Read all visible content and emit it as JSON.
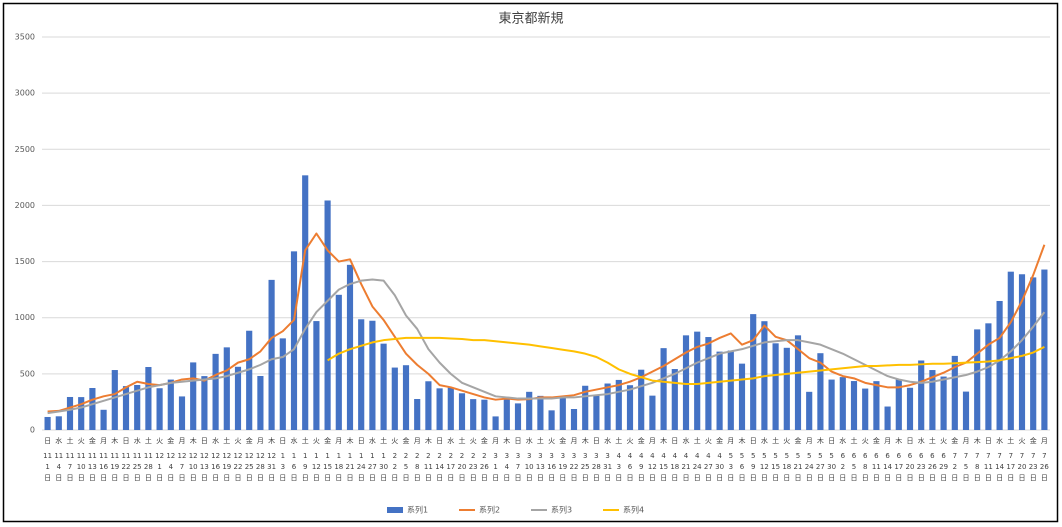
{
  "chart_data": {
    "type": "bar-line",
    "title": "東京都新規",
    "ylim": [
      0,
      3500
    ],
    "yticks": [
      0,
      500,
      1000,
      1500,
      2000,
      2500,
      3000,
      3500
    ],
    "grid": true,
    "legend": "bottom",
    "weekdays": [
      "日",
      "水",
      "土",
      "火",
      "金",
      "月",
      "木",
      "日",
      "水",
      "土",
      "火",
      "金",
      "月",
      "木",
      "日",
      "水",
      "土",
      "火",
      "金",
      "月",
      "木",
      "日",
      "水",
      "土",
      "火",
      "金",
      "月",
      "木",
      "日",
      "水",
      "土",
      "火",
      "金",
      "月",
      "木",
      "日",
      "水",
      "土",
      "火",
      "金",
      "月",
      "木",
      "日",
      "水",
      "土",
      "火",
      "金",
      "月",
      "木",
      "日",
      "水",
      "土",
      "火",
      "金",
      "月",
      "木",
      "日",
      "水",
      "土",
      "火",
      "金",
      "月",
      "木",
      "日",
      "水",
      "土",
      "火",
      "金",
      "月",
      "木",
      "日",
      "水",
      "土",
      "火",
      "金",
      "月",
      "木",
      "日",
      "水",
      "土",
      "火",
      "金",
      "月",
      "木",
      "日",
      "水",
      "土",
      "火",
      "金",
      "月"
    ],
    "categories": [
      "11\n1\n日",
      "11\n4\n日",
      "11\n7\n日",
      "11\n10\n日",
      "11\n13\n日",
      "11\n16\n日",
      "11\n19\n日",
      "11\n22\n日",
      "11\n25\n日",
      "11\n28\n日",
      "12\n1\n日",
      "12\n4\n日",
      "12\n7\n日",
      "12\n10\n日",
      "12\n13\n日",
      "12\n16\n日",
      "12\n19\n日",
      "12\n22\n日",
      "12\n25\n日",
      "12\n28\n日",
      "12\n31\n日",
      "1\n3\n日",
      "1\n6\n日",
      "1\n9\n日",
      "1\n12\n日",
      "1\n15\n日",
      "1\n18\n日",
      "1\n21\n日",
      "1\n24\n日",
      "1\n27\n日",
      "1\n30\n日",
      "2\n2\n日",
      "2\n5\n日",
      "2\n8\n日",
      "2\n11\n日",
      "2\n14\n日",
      "2\n17\n日",
      "2\n20\n日",
      "2\n23\n日",
      "2\n26\n日",
      "3\n1\n日",
      "3\n4\n日",
      "3\n7\n日",
      "3\n10\n日",
      "3\n13\n日",
      "3\n16\n日",
      "3\n19\n日",
      "3\n22\n日",
      "3\n25\n日",
      "3\n28\n日",
      "3\n31\n日",
      "4\n3\n日",
      "4\n6\n日",
      "4\n9\n日",
      "4\n12\n日",
      "4\n15\n日",
      "4\n18\n日",
      "4\n21\n日",
      "4\n24\n日",
      "4\n27\n日",
      "4\n30\n日",
      "5\n3\n日",
      "5\n6\n日",
      "5\n9\n日",
      "5\n12\n日",
      "5\n15\n日",
      "5\n18\n日",
      "5\n21\n日",
      "5\n24\n日",
      "5\n27\n日",
      "5\n30\n日",
      "6\n2\n日",
      "6\n5\n日",
      "6\n8\n日",
      "6\n11\n日",
      "6\n14\n日",
      "6\n17\n日",
      "6\n20\n日",
      "6\n23\n日",
      "6\n26\n日",
      "6\n29\n日",
      "7\n2\n日",
      "7\n5\n日",
      "7\n8\n日",
      "7\n11\n日",
      "7\n14\n日",
      "7\n17\n日",
      "7\n20\n日",
      "7\n23\n日",
      "7\n26\n日"
    ],
    "series": [
      {
        "name": "系列1",
        "kind": "bar",
        "color": "#4472c4",
        "values": [
          116,
          122,
          294,
          293,
          374,
          180,
          534,
          391,
          401,
          561,
          372,
          449,
          299,
          602,
          480,
          678,
          736,
          563,
          884,
          481,
          1337,
          816,
          1591,
          2268,
          970,
          2044,
          1204,
          1471,
          986,
          973,
          769,
          556,
          577,
          276,
          434,
          371,
          378,
          327,
          275,
          270,
          121,
          279,
          237,
          340,
          304,
          175,
          303,
          187,
          394,
          313,
          414,
          446,
          399,
          537,
          306,
          729,
          543,
          843,
          876,
          828,
          698,
          708,
          591,
          1032,
          969,
          772,
          732,
          843,
          340,
          684,
          449,
          471,
          436,
          369,
          435,
          209,
          452,
          376,
          619,
          534,
          476,
          660,
          342,
          896,
          950,
          1149,
          1410,
          1387,
          1359,
          1429
        ]
      },
      {
        "name": "系列2",
        "kind": "line",
        "color": "#ed7d31",
        "values": [
          165,
          170,
          200,
          230,
          270,
          300,
          320,
          380,
          430,
          410,
          400,
          420,
          450,
          460,
          440,
          490,
          530,
          600,
          630,
          700,
          820,
          880,
          980,
          1600,
          1750,
          1600,
          1500,
          1520,
          1300,
          1100,
          980,
          830,
          680,
          580,
          500,
          400,
          380,
          350,
          320,
          290,
          270,
          280,
          270,
          275,
          290,
          290,
          300,
          310,
          340,
          360,
          380,
          400,
          430,
          470,
          520,
          570,
          630,
          690,
          740,
          770,
          820,
          860,
          760,
          800,
          930,
          830,
          800,
          720,
          640,
          600,
          520,
          480,
          460,
          420,
          400,
          380,
          380,
          400,
          430,
          470,
          510,
          560,
          600,
          680,
          760,
          820,
          960,
          1150,
          1380,
          1650
        ]
      },
      {
        "name": "系列3",
        "kind": "line",
        "color": "#a5a5a5",
        "values": [
          150,
          165,
          180,
          200,
          230,
          260,
          290,
          320,
          350,
          380,
          400,
          420,
          430,
          440,
          450,
          460,
          480,
          510,
          540,
          580,
          630,
          650,
          720,
          900,
          1050,
          1150,
          1250,
          1300,
          1330,
          1340,
          1330,
          1200,
          1020,
          900,
          720,
          600,
          500,
          420,
          380,
          340,
          300,
          290,
          280,
          280,
          280,
          280,
          290,
          290,
          300,
          310,
          320,
          340,
          360,
          390,
          420,
          460,
          500,
          550,
          600,
          640,
          680,
          700,
          720,
          750,
          780,
          790,
          800,
          800,
          780,
          760,
          720,
          680,
          630,
          580,
          530,
          480,
          450,
          430,
          420,
          430,
          450,
          470,
          490,
          520,
          560,
          620,
          700,
          800,
          920,
          1050
        ]
      },
      {
        "name": "系列4",
        "kind": "line",
        "color": "#ffc000",
        "values": [
          null,
          null,
          null,
          null,
          null,
          null,
          null,
          null,
          null,
          null,
          null,
          null,
          null,
          null,
          null,
          null,
          null,
          null,
          null,
          null,
          null,
          null,
          null,
          null,
          null,
          620,
          680,
          720,
          750,
          780,
          800,
          810,
          820,
          820,
          820,
          820,
          815,
          810,
          800,
          800,
          790,
          780,
          770,
          760,
          745,
          730,
          715,
          700,
          680,
          650,
          600,
          540,
          500,
          470,
          440,
          430,
          420,
          410,
          410,
          420,
          430,
          440,
          450,
          460,
          480,
          490,
          500,
          510,
          520,
          530,
          540,
          550,
          560,
          570,
          570,
          575,
          580,
          580,
          585,
          590,
          590,
          595,
          600,
          605,
          610,
          620,
          640,
          660,
          690,
          740
        ]
      }
    ]
  }
}
